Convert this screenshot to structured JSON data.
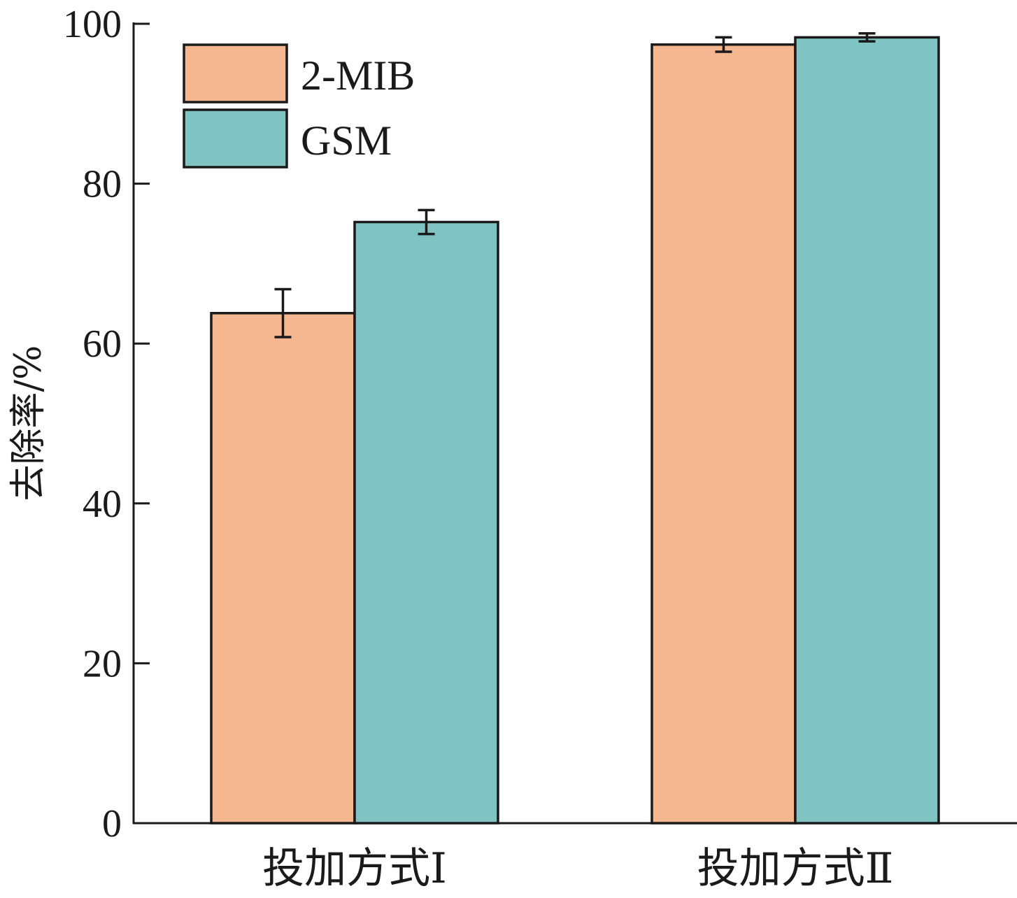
{
  "chart_data": {
    "type": "bar",
    "title": "",
    "xlabel": "",
    "ylabel": "去除率/%",
    "ylim": [
      0,
      100
    ],
    "yticks": [
      0,
      20,
      40,
      60,
      80,
      100
    ],
    "grid": false,
    "legend_position": "top-left",
    "categories": [
      "投加方式Ⅰ",
      "投加方式Ⅱ"
    ],
    "series": [
      {
        "name": "2-MIB",
        "color": "#F4B78F",
        "values": [
          63.8,
          97.4
        ],
        "errors": [
          3.0,
          0.9
        ]
      },
      {
        "name": "GSM",
        "color": "#7FC4C2",
        "values": [
          75.2,
          98.3
        ],
        "errors": [
          1.5,
          0.5
        ]
      }
    ]
  }
}
